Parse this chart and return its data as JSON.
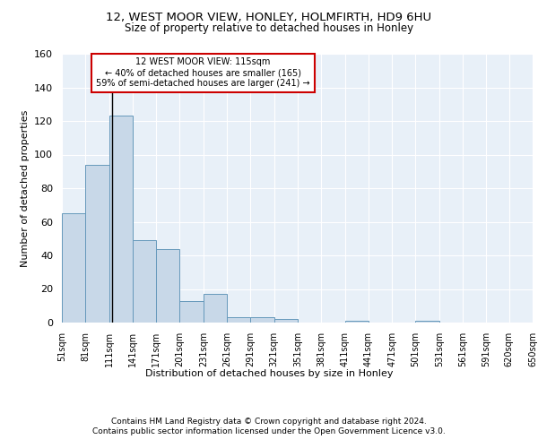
{
  "title1": "12, WEST MOOR VIEW, HONLEY, HOLMFIRTH, HD9 6HU",
  "title2": "Size of property relative to detached houses in Honley",
  "xlabel": "Distribution of detached houses by size in Honley",
  "ylabel": "Number of detached properties",
  "footnote1": "Contains HM Land Registry data © Crown copyright and database right 2024.",
  "footnote2": "Contains public sector information licensed under the Open Government Licence v3.0.",
  "annotation_line1": "12 WEST MOOR VIEW: 115sqm",
  "annotation_line2": "← 40% of detached houses are smaller (165)",
  "annotation_line3": "59% of semi-detached houses are larger (241) →",
  "subject_value": 115,
  "bar_edges": [
    51,
    81,
    111,
    141,
    171,
    201,
    231,
    261,
    291,
    321,
    351,
    381,
    411,
    441,
    471,
    501,
    531,
    561,
    591,
    620,
    650
  ],
  "bar_heights": [
    65,
    94,
    123,
    49,
    44,
    13,
    17,
    3,
    3,
    2,
    0,
    0,
    1,
    0,
    0,
    1,
    0,
    0,
    0,
    0
  ],
  "bar_color": "#c8d8e8",
  "bar_edge_color": "#6699bb",
  "subject_line_color": "#000000",
  "annotation_box_edge_color": "#cc0000",
  "background_color": "#e8f0f8",
  "ylim": [
    0,
    160
  ],
  "yticks": [
    0,
    20,
    40,
    60,
    80,
    100,
    120,
    140,
    160
  ]
}
